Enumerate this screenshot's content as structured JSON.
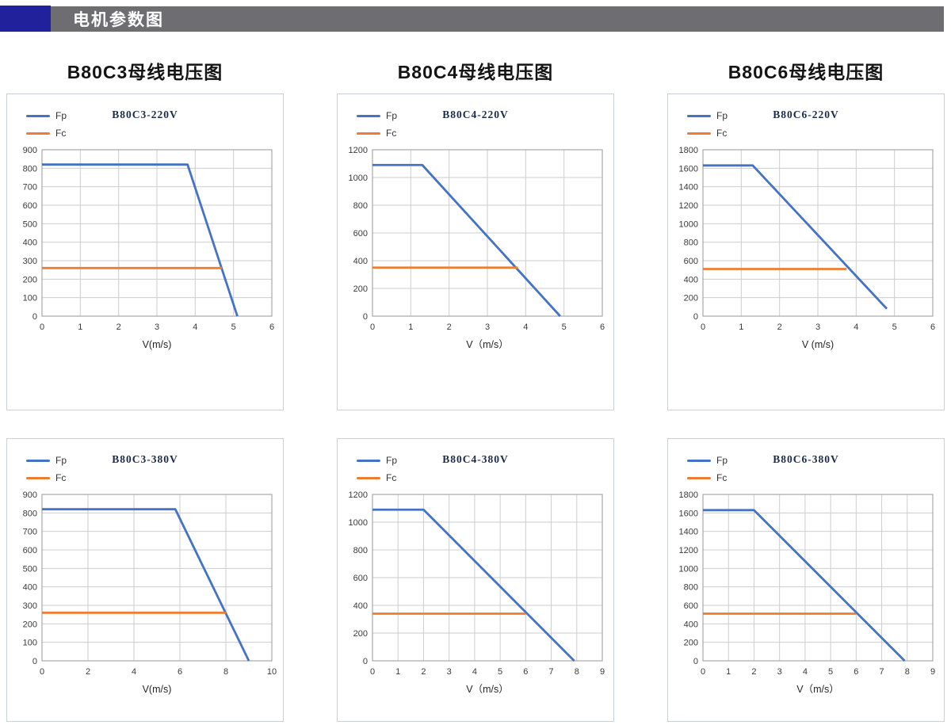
{
  "header": {
    "title": "电机参数图",
    "accent_color": "#21219c",
    "bar_color": "#6e6e72"
  },
  "sections": {
    "titles": [
      "B80C3母线电压图",
      "B80C4母线电压图",
      "B80C6母线电压图"
    ]
  },
  "palette": {
    "fp_blue": "#4472C4",
    "fc_orange": "#ED7D31"
  },
  "chart_data": [
    {
      "type": "line",
      "title": "B80C3-220V",
      "xlabel": "V(m/s)",
      "xlim": [
        0,
        6
      ],
      "ylim": [
        0,
        900
      ],
      "x_ticks": [
        0,
        1,
        2,
        3,
        4,
        5,
        6
      ],
      "y_ticks": [
        0,
        100,
        200,
        300,
        400,
        500,
        600,
        700,
        800,
        900
      ],
      "grid": true,
      "legend_position": "top-left",
      "series": [
        {
          "name": "Fp",
          "color": "#4472C4",
          "points": [
            [
              0,
              820
            ],
            [
              3.8,
              820
            ],
            [
              5.1,
              0
            ]
          ]
        },
        {
          "name": "Fc",
          "color": "#ED7D31",
          "points": [
            [
              0,
              260
            ],
            [
              4.7,
              260
            ]
          ]
        }
      ]
    },
    {
      "type": "line",
      "title": "B80C4-220V",
      "xlabel": "V（m/s）",
      "xlim": [
        0,
        6
      ],
      "ylim": [
        0,
        1200
      ],
      "x_ticks": [
        0,
        1,
        2,
        3,
        4,
        5,
        6
      ],
      "y_ticks": [
        0,
        200,
        400,
        600,
        800,
        1000,
        1200
      ],
      "grid": true,
      "legend_position": "top-left",
      "series": [
        {
          "name": "Fp",
          "color": "#4472C4",
          "points": [
            [
              0,
              1090
            ],
            [
              1.3,
              1090
            ],
            [
              4.9,
              0
            ]
          ]
        },
        {
          "name": "Fc",
          "color": "#ED7D31",
          "points": [
            [
              0,
              350
            ],
            [
              3.8,
              350
            ]
          ]
        }
      ]
    },
    {
      "type": "line",
      "title": "B80C6-220V",
      "xlabel": "V (m/s)",
      "xlim": [
        0,
        6
      ],
      "ylim": [
        0,
        1800
      ],
      "x_ticks": [
        0,
        1,
        2,
        3,
        4,
        5,
        6
      ],
      "y_ticks": [
        0,
        200,
        400,
        600,
        800,
        1000,
        1200,
        1400,
        1600,
        1800
      ],
      "grid": true,
      "legend_position": "top-left",
      "series": [
        {
          "name": "Fp",
          "color": "#4472C4",
          "points": [
            [
              0,
              1630
            ],
            [
              1.3,
              1630
            ],
            [
              4.8,
              80
            ]
          ]
        },
        {
          "name": "Fc",
          "color": "#ED7D31",
          "points": [
            [
              0,
              510
            ],
            [
              3.75,
              510
            ]
          ]
        }
      ]
    },
    {
      "type": "line",
      "title": "B80C3-380V",
      "xlabel": "V(m/s)",
      "xlim": [
        0,
        10
      ],
      "ylim": [
        0,
        900
      ],
      "x_ticks": [
        0,
        2,
        4,
        6,
        8,
        10
      ],
      "y_ticks": [
        0,
        100,
        200,
        300,
        400,
        500,
        600,
        700,
        800,
        900
      ],
      "grid": true,
      "legend_position": "top-left",
      "series": [
        {
          "name": "Fp",
          "color": "#4472C4",
          "points": [
            [
              0,
              820
            ],
            [
              5.8,
              820
            ],
            [
              9,
              0
            ]
          ]
        },
        {
          "name": "Fc",
          "color": "#ED7D31",
          "points": [
            [
              0,
              260
            ],
            [
              8,
              260
            ]
          ]
        }
      ]
    },
    {
      "type": "line",
      "title": "B80C4-380V",
      "xlabel": "V（m/s）",
      "xlim": [
        0,
        9
      ],
      "ylim": [
        0,
        1200
      ],
      "x_ticks": [
        0,
        1,
        2,
        3,
        4,
        5,
        6,
        7,
        8,
        9
      ],
      "y_ticks": [
        0,
        200,
        400,
        600,
        800,
        1000,
        1200
      ],
      "grid": true,
      "legend_position": "top-left",
      "series": [
        {
          "name": "Fp",
          "color": "#4472C4",
          "points": [
            [
              0,
              1090
            ],
            [
              2,
              1090
            ],
            [
              7.9,
              0
            ]
          ]
        },
        {
          "name": "Fc",
          "color": "#ED7D31",
          "points": [
            [
              0,
              340
            ],
            [
              6,
              340
            ]
          ]
        }
      ]
    },
    {
      "type": "line",
      "title": "B80C6-380V",
      "xlabel": "V（m/s）",
      "xlim": [
        0,
        9
      ],
      "ylim": [
        0,
        1800
      ],
      "x_ticks": [
        0,
        1,
        2,
        3,
        4,
        5,
        6,
        7,
        8,
        9
      ],
      "y_ticks": [
        0,
        200,
        400,
        600,
        800,
        1000,
        1200,
        1400,
        1600,
        1800
      ],
      "grid": true,
      "legend_position": "top-left",
      "series": [
        {
          "name": "Fp",
          "color": "#4472C4",
          "points": [
            [
              0,
              1630
            ],
            [
              2,
              1630
            ],
            [
              7.9,
              0
            ]
          ]
        },
        {
          "name": "Fc",
          "color": "#ED7D31",
          "points": [
            [
              0,
              510
            ],
            [
              6,
              510
            ]
          ]
        }
      ]
    }
  ]
}
